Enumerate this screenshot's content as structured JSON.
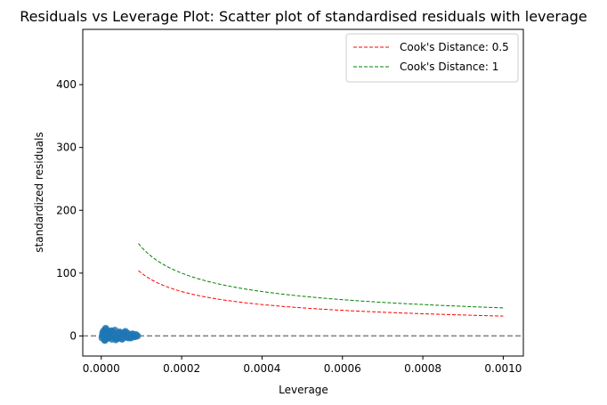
{
  "chart_data": {
    "type": "scatter",
    "title": "Residuals vs Leverage Plot: Scatter plot of standardised residuals with leverage",
    "xlabel": "Leverage",
    "ylabel": "standardized residuals",
    "xlim": [
      -4.6e-05,
      0.00105
    ],
    "ylim": [
      -32,
      488
    ],
    "x_ticks": [
      0.0,
      0.0002,
      0.0004,
      0.0006,
      0.0008,
      0.001
    ],
    "x_tick_labels": [
      "0.0000",
      "0.0002",
      "0.0004",
      "0.0006",
      "0.0008",
      "0.0010"
    ],
    "y_ticks": [
      0,
      100,
      200,
      300,
      400
    ],
    "y_tick_labels": [
      "0",
      "100",
      "200",
      "300",
      "400"
    ],
    "grid": false,
    "legend_position": "top-right",
    "reference_line": {
      "y": 0,
      "style": "dashed",
      "color": "#808080"
    },
    "series": [
      {
        "kind": "points",
        "color": "#1f77b4",
        "x": [
          2e-06,
          4e-06,
          6e-06,
          8e-06,
          1e-05,
          1.2e-05,
          1.4e-05,
          1.6e-05,
          1.8e-05,
          2e-05,
          2.3e-05,
          2.6e-05,
          3e-05,
          3.4e-05,
          3.8e-05,
          4.2e-05,
          4.6e-05,
          5e-05,
          5.4e-05,
          5.8e-05,
          6.2e-05,
          6.6e-05,
          7e-05,
          7.4e-05,
          7.8e-05,
          8.2e-05,
          8.6e-05,
          9e-05,
          3e-06,
          9e-06,
          1.5e-05,
          2.1e-05,
          2.8e-05,
          3.6e-05,
          4.4e-05,
          5.2e-05,
          6e-05,
          6.8e-05,
          7.6e-05,
          8.4e-05,
          1.1e-05,
          2.5e-05,
          4e-05,
          5.5e-05,
          7e-05
        ],
        "y": [
          -3,
          5,
          8,
          -6,
          2,
          10,
          -4,
          6,
          -2,
          7,
          1,
          -5,
          4,
          9,
          -3,
          3,
          6,
          -4,
          2,
          5,
          -2,
          4,
          1,
          -3,
          3,
          -1,
          2,
          0,
          1,
          -7,
          3,
          -2,
          6,
          -6,
          5,
          -5,
          7,
          -3,
          2,
          -1,
          12,
          8,
          -4,
          4,
          -2
        ]
      },
      {
        "kind": "curve",
        "name": "Cook's Distance: 0.5",
        "color": "#ff0000",
        "cooks_distance": 0.5,
        "x_range": [
          9.23e-05,
          0.001
        ]
      },
      {
        "kind": "curve",
        "name": "Cook's Distance: 1",
        "color": "#008000",
        "cooks_distance": 1,
        "x_range": [
          9.23e-05,
          0.001
        ]
      }
    ]
  }
}
